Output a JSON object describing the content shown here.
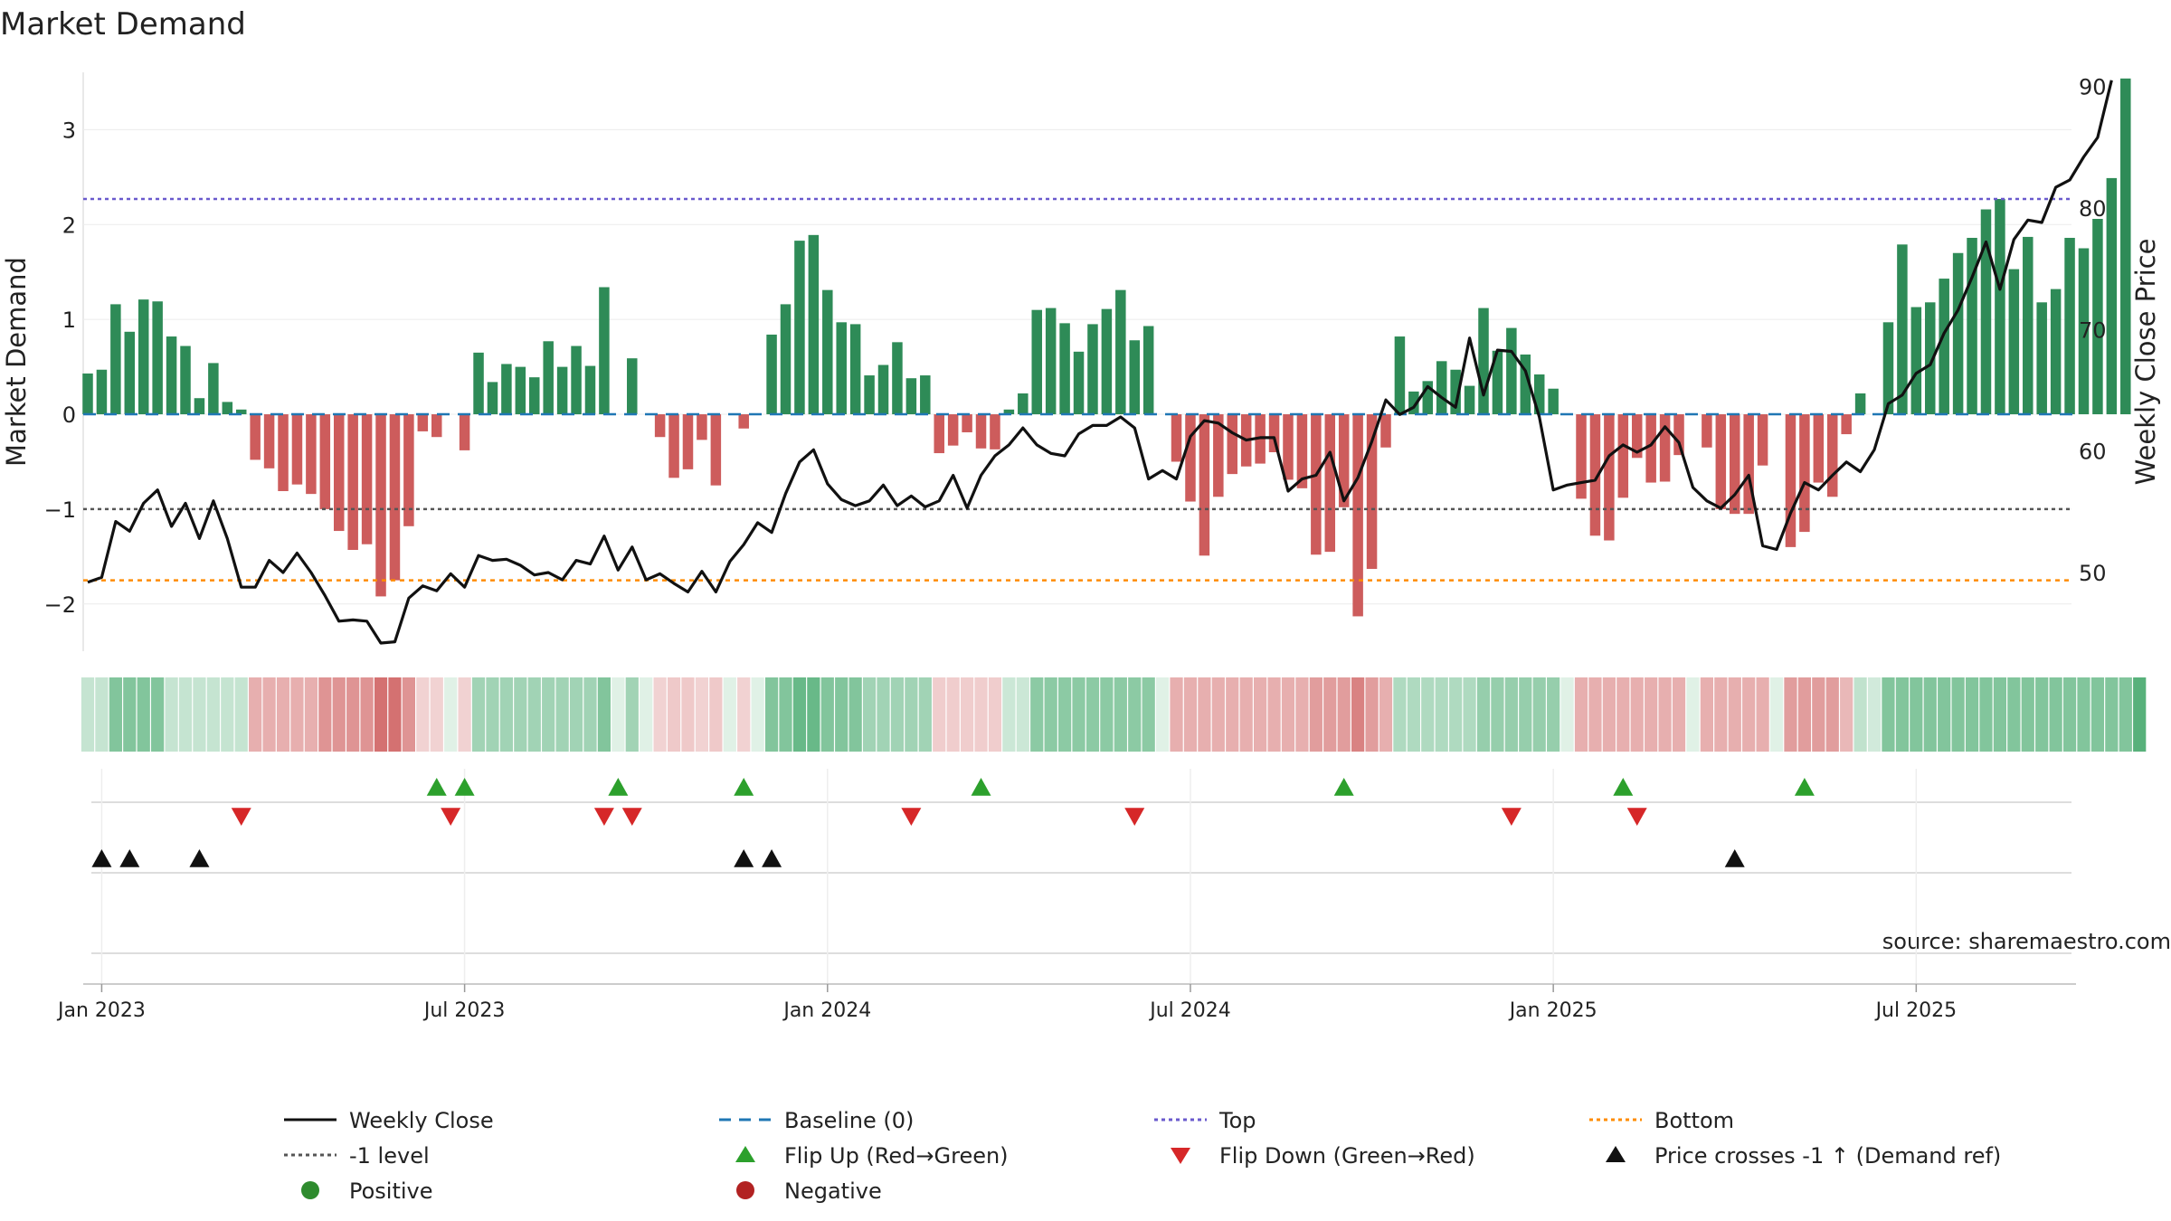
{
  "chart_data": {
    "type": "bar",
    "title": "Market Demand",
    "ylabel": "Market Demand",
    "ylabel_right": "Weekly Close Price",
    "source": "source: sharemaestro.com",
    "ylim": [
      -2.45,
      3.7
    ],
    "ylim_right": [
      43.9,
      91.9
    ],
    "yticks": [
      {
        "v": 3,
        "label": "3"
      },
      {
        "v": 2,
        "label": "2"
      },
      {
        "v": 1,
        "label": "1"
      },
      {
        "v": 0,
        "label": "0"
      },
      {
        "v": -1,
        "label": "−1"
      },
      {
        "v": -2,
        "label": "−2"
      }
    ],
    "yticks_right": [
      {
        "v": 90,
        "label": "90"
      },
      {
        "v": 80,
        "label": "80"
      },
      {
        "v": 70,
        "label": "70"
      },
      {
        "v": 60,
        "label": "60"
      },
      {
        "v": 50,
        "label": "50"
      }
    ],
    "xticks": [
      {
        "i": 1,
        "label": "Jan 2023"
      },
      {
        "i": 27,
        "label": "Jul 2023"
      },
      {
        "i": 53,
        "label": "Jan 2024"
      },
      {
        "i": 79,
        "label": "Jul 2024"
      },
      {
        "i": 105,
        "label": "Jan 2025"
      },
      {
        "i": 131,
        "label": "Jul 2025"
      }
    ],
    "n_weeks": 143,
    "levels": {
      "top": 2.27,
      "bottom": -1.75,
      "minus_one": -1.0,
      "baseline": 0
    },
    "demand": [
      0.43,
      0.47,
      1.16,
      0.87,
      1.21,
      1.19,
      0.82,
      0.72,
      0.17,
      0.54,
      0.13,
      0.05,
      -0.48,
      -0.57,
      -0.81,
      -0.74,
      -0.84,
      -1.0,
      -1.23,
      -1.43,
      -1.37,
      -1.92,
      -1.75,
      -1.18,
      -0.18,
      -0.24,
      0.0,
      -0.38,
      0.65,
      0.34,
      0.53,
      0.5,
      0.39,
      0.77,
      0.5,
      0.72,
      0.51,
      1.34,
      0.0,
      0.59,
      0.0,
      -0.24,
      -0.67,
      -0.58,
      -0.27,
      -0.75,
      0.0,
      -0.15,
      0.0,
      0.84,
      1.16,
      1.83,
      1.89,
      1.31,
      0.97,
      0.95,
      0.41,
      0.52,
      0.76,
      0.38,
      0.41,
      -0.41,
      -0.33,
      -0.19,
      -0.36,
      -0.37,
      0.05,
      0.22,
      1.1,
      1.12,
      0.96,
      0.66,
      0.95,
      1.11,
      1.31,
      0.78,
      0.93,
      0.0,
      -0.5,
      -0.92,
      -1.49,
      -0.87,
      -0.63,
      -0.55,
      -0.52,
      -0.4,
      -0.69,
      -0.78,
      -1.48,
      -1.45,
      -0.98,
      -2.13,
      -1.63,
      -0.35,
      0.82,
      0.24,
      0.35,
      0.56,
      0.47,
      0.3,
      1.12,
      0.67,
      0.91,
      0.63,
      0.42,
      0.27,
      0.0,
      -0.89,
      -1.28,
      -1.33,
      -0.88,
      -0.46,
      -0.72,
      -0.71,
      -0.43,
      0.0,
      -0.35,
      -1.0,
      -1.05,
      -1.05,
      -0.54,
      0.0,
      -1.4,
      -1.24,
      -0.72,
      -0.87,
      -0.21,
      0.22,
      0.0,
      0.97,
      1.79,
      1.13,
      1.18,
      1.43,
      1.7,
      1.86,
      2.16,
      2.27,
      1.53,
      1.87,
      1.18,
      1.32,
      1.86,
      1.75,
      2.06,
      2.49,
      3.54
    ],
    "close": [
      49.2,
      49.6,
      54.2,
      53.4,
      55.7,
      56.8,
      53.8,
      55.7,
      52.8,
      55.9,
      52.8,
      48.8,
      48.8,
      51.0,
      50.0,
      51.6,
      50.0,
      48.1,
      46.0,
      46.1,
      46.0,
      44.2,
      44.3,
      47.9,
      48.9,
      48.5,
      49.9,
      48.8,
      51.4,
      51.0,
      51.1,
      50.6,
      49.8,
      50.0,
      49.4,
      51.0,
      50.7,
      53.0,
      50.2,
      52.1,
      49.4,
      49.9,
      49.1,
      48.4,
      50.1,
      48.4,
      50.9,
      52.3,
      54.1,
      53.3,
      56.5,
      59.1,
      60.1,
      57.3,
      56.0,
      55.5,
      55.9,
      57.2,
      55.5,
      56.3,
      55.4,
      55.9,
      58.0,
      55.3,
      58.0,
      59.6,
      60.5,
      61.9,
      60.5,
      59.8,
      59.6,
      61.4,
      62.1,
      62.1,
      62.8,
      61.9,
      57.7,
      58.4,
      57.7,
      61.2,
      62.5,
      62.3,
      61.5,
      60.9,
      61.1,
      61.1,
      56.7,
      57.7,
      58.0,
      59.9,
      55.9,
      57.8,
      60.8,
      64.2,
      63.0,
      63.6,
      65.3,
      64.4,
      63.6,
      69.3,
      64.6,
      68.3,
      68.2,
      66.6,
      62.8,
      56.8,
      57.2,
      57.4,
      57.6,
      59.6,
      60.5,
      59.9,
      60.5,
      62.0,
      60.7,
      57.0,
      55.9,
      55.3,
      56.4,
      58.0,
      52.2,
      51.9,
      54.9,
      57.4,
      56.8,
      58.0,
      59.1,
      58.3,
      60.1,
      63.9,
      64.6,
      66.4,
      67.1,
      69.7,
      71.6,
      74.3,
      77.2,
      73.3,
      77.4,
      79.0,
      78.8,
      81.7,
      82.3,
      84.2,
      85.8,
      90.5
    ],
    "strip": [
      [
        0.72,
        "pos"
      ],
      [
        0.72,
        "pos"
      ],
      [
        0.4,
        "pos"
      ],
      [
        0.4,
        "pos"
      ],
      [
        0.4,
        "pos"
      ],
      [
        0.4,
        "pos"
      ],
      [
        0.72,
        "pos"
      ],
      [
        0.72,
        "pos"
      ],
      [
        0.72,
        "pos"
      ],
      [
        0.72,
        "pos"
      ],
      [
        0.72,
        "pos"
      ],
      [
        0.72,
        "pos"
      ],
      [
        0.55,
        "neg"
      ],
      [
        0.55,
        "neg"
      ],
      [
        0.55,
        "neg"
      ],
      [
        0.55,
        "neg"
      ],
      [
        0.55,
        "neg"
      ],
      [
        0.4,
        "neg"
      ],
      [
        0.4,
        "neg"
      ],
      [
        0.4,
        "neg"
      ],
      [
        0.4,
        "neg"
      ],
      [
        0.2,
        "neg"
      ],
      [
        0.2,
        "neg"
      ],
      [
        0.4,
        "neg"
      ],
      [
        0.75,
        "neg"
      ],
      [
        0.75,
        "neg"
      ],
      [
        0.85,
        "pos"
      ],
      [
        0.75,
        "neg"
      ],
      [
        0.55,
        "pos"
      ],
      [
        0.55,
        "pos"
      ],
      [
        0.55,
        "pos"
      ],
      [
        0.55,
        "pos"
      ],
      [
        0.55,
        "pos"
      ],
      [
        0.55,
        "pos"
      ],
      [
        0.55,
        "pos"
      ],
      [
        0.55,
        "pos"
      ],
      [
        0.55,
        "pos"
      ],
      [
        0.4,
        "pos"
      ],
      [
        0.85,
        "pos"
      ],
      [
        0.55,
        "pos"
      ],
      [
        0.85,
        "pos"
      ],
      [
        0.75,
        "neg"
      ],
      [
        0.7,
        "neg"
      ],
      [
        0.7,
        "neg"
      ],
      [
        0.75,
        "neg"
      ],
      [
        0.7,
        "neg"
      ],
      [
        0.85,
        "pos"
      ],
      [
        0.75,
        "neg"
      ],
      [
        0.85,
        "pos"
      ],
      [
        0.4,
        "pos"
      ],
      [
        0.4,
        "pos"
      ],
      [
        0.28,
        "pos"
      ],
      [
        0.28,
        "pos"
      ],
      [
        0.4,
        "pos"
      ],
      [
        0.4,
        "pos"
      ],
      [
        0.4,
        "pos"
      ],
      [
        0.55,
        "pos"
      ],
      [
        0.55,
        "pos"
      ],
      [
        0.55,
        "pos"
      ],
      [
        0.55,
        "pos"
      ],
      [
        0.55,
        "pos"
      ],
      [
        0.72,
        "neg"
      ],
      [
        0.72,
        "neg"
      ],
      [
        0.72,
        "neg"
      ],
      [
        0.72,
        "neg"
      ],
      [
        0.72,
        "neg"
      ],
      [
        0.75,
        "pos"
      ],
      [
        0.75,
        "pos"
      ],
      [
        0.45,
        "pos"
      ],
      [
        0.45,
        "pos"
      ],
      [
        0.45,
        "pos"
      ],
      [
        0.45,
        "pos"
      ],
      [
        0.45,
        "pos"
      ],
      [
        0.45,
        "pos"
      ],
      [
        0.45,
        "pos"
      ],
      [
        0.45,
        "pos"
      ],
      [
        0.45,
        "pos"
      ],
      [
        0.85,
        "pos"
      ],
      [
        0.55,
        "neg"
      ],
      [
        0.55,
        "neg"
      ],
      [
        0.55,
        "neg"
      ],
      [
        0.55,
        "neg"
      ],
      [
        0.55,
        "neg"
      ],
      [
        0.55,
        "neg"
      ],
      [
        0.55,
        "neg"
      ],
      [
        0.55,
        "neg"
      ],
      [
        0.55,
        "neg"
      ],
      [
        0.55,
        "neg"
      ],
      [
        0.45,
        "neg"
      ],
      [
        0.45,
        "neg"
      ],
      [
        0.45,
        "neg"
      ],
      [
        0.3,
        "neg"
      ],
      [
        0.45,
        "neg"
      ],
      [
        0.55,
        "neg"
      ],
      [
        0.62,
        "pos"
      ],
      [
        0.62,
        "pos"
      ],
      [
        0.62,
        "pos"
      ],
      [
        0.62,
        "pos"
      ],
      [
        0.62,
        "pos"
      ],
      [
        0.62,
        "pos"
      ],
      [
        0.5,
        "pos"
      ],
      [
        0.5,
        "pos"
      ],
      [
        0.5,
        "pos"
      ],
      [
        0.5,
        "pos"
      ],
      [
        0.5,
        "pos"
      ],
      [
        0.5,
        "pos"
      ],
      [
        0.85,
        "pos"
      ],
      [
        0.55,
        "neg"
      ],
      [
        0.55,
        "neg"
      ],
      [
        0.55,
        "neg"
      ],
      [
        0.55,
        "neg"
      ],
      [
        0.55,
        "neg"
      ],
      [
        0.55,
        "neg"
      ],
      [
        0.55,
        "neg"
      ],
      [
        0.55,
        "neg"
      ],
      [
        0.85,
        "pos"
      ],
      [
        0.55,
        "neg"
      ],
      [
        0.55,
        "neg"
      ],
      [
        0.55,
        "neg"
      ],
      [
        0.55,
        "neg"
      ],
      [
        0.55,
        "neg"
      ],
      [
        0.85,
        "pos"
      ],
      [
        0.45,
        "neg"
      ],
      [
        0.45,
        "neg"
      ],
      [
        0.45,
        "neg"
      ],
      [
        0.45,
        "neg"
      ],
      [
        0.6,
        "neg"
      ],
      [
        0.7,
        "pos"
      ],
      [
        0.78,
        "pos"
      ],
      [
        0.4,
        "pos"
      ],
      [
        0.4,
        "pos"
      ],
      [
        0.4,
        "pos"
      ],
      [
        0.4,
        "pos"
      ],
      [
        0.4,
        "pos"
      ],
      [
        0.4,
        "pos"
      ],
      [
        0.4,
        "pos"
      ],
      [
        0.4,
        "pos"
      ],
      [
        0.4,
        "pos"
      ],
      [
        0.4,
        "pos"
      ],
      [
        0.4,
        "pos"
      ],
      [
        0.4,
        "pos"
      ],
      [
        0.4,
        "pos"
      ],
      [
        0.4,
        "pos"
      ],
      [
        0.4,
        "pos"
      ],
      [
        0.4,
        "pos"
      ],
      [
        0.4,
        "pos"
      ],
      [
        0.4,
        "pos"
      ],
      [
        0.2,
        "pos"
      ]
    ],
    "flip_up_weeks": [
      25,
      27,
      38,
      47,
      64,
      90,
      110,
      123
    ],
    "flip_down_weeks": [
      11,
      26,
      37,
      39,
      59,
      75,
      102,
      111
    ],
    "price_cross_weeks": [
      1,
      3,
      8,
      47,
      49,
      118
    ],
    "colors": {
      "positive": "#2e8b57",
      "negative": "#cd5c5c",
      "close": "#111111",
      "baseline": "#1f77b4",
      "top": "#6a5acd",
      "bottom": "#ff8c00",
      "minus_one": "#555555",
      "flip_up": "#2ca02c",
      "flip_down": "#d62728",
      "cross": "#111111",
      "strip_pos": "#2e9e5a",
      "strip_neg": "#c94d4d"
    },
    "legend": [
      {
        "label": "Weekly Close",
        "kind": "line-solid",
        "color": "#111111"
      },
      {
        "label": "Baseline (0)",
        "kind": "line-dash",
        "color": "#1f77b4"
      },
      {
        "label": "Top",
        "kind": "line-dot",
        "color": "#6a5acd"
      },
      {
        "label": "Bottom",
        "kind": "line-dot",
        "color": "#ff8c00"
      },
      {
        "label": "-1 level",
        "kind": "line-dot",
        "color": "#555555"
      },
      {
        "label": "Flip Up (Red→Green)",
        "kind": "tri-up",
        "color": "#2ca02c"
      },
      {
        "label": "Flip Down (Green→Red)",
        "kind": "tri-down",
        "color": "#d62728"
      },
      {
        "label": "Price crosses -1 ↑ (Demand ref)",
        "kind": "tri-up",
        "color": "#111111"
      },
      {
        "label": "Positive",
        "kind": "dot",
        "color": "#2e8b2e"
      },
      {
        "label": "Negative",
        "kind": "dot",
        "color": "#b22222"
      }
    ]
  }
}
